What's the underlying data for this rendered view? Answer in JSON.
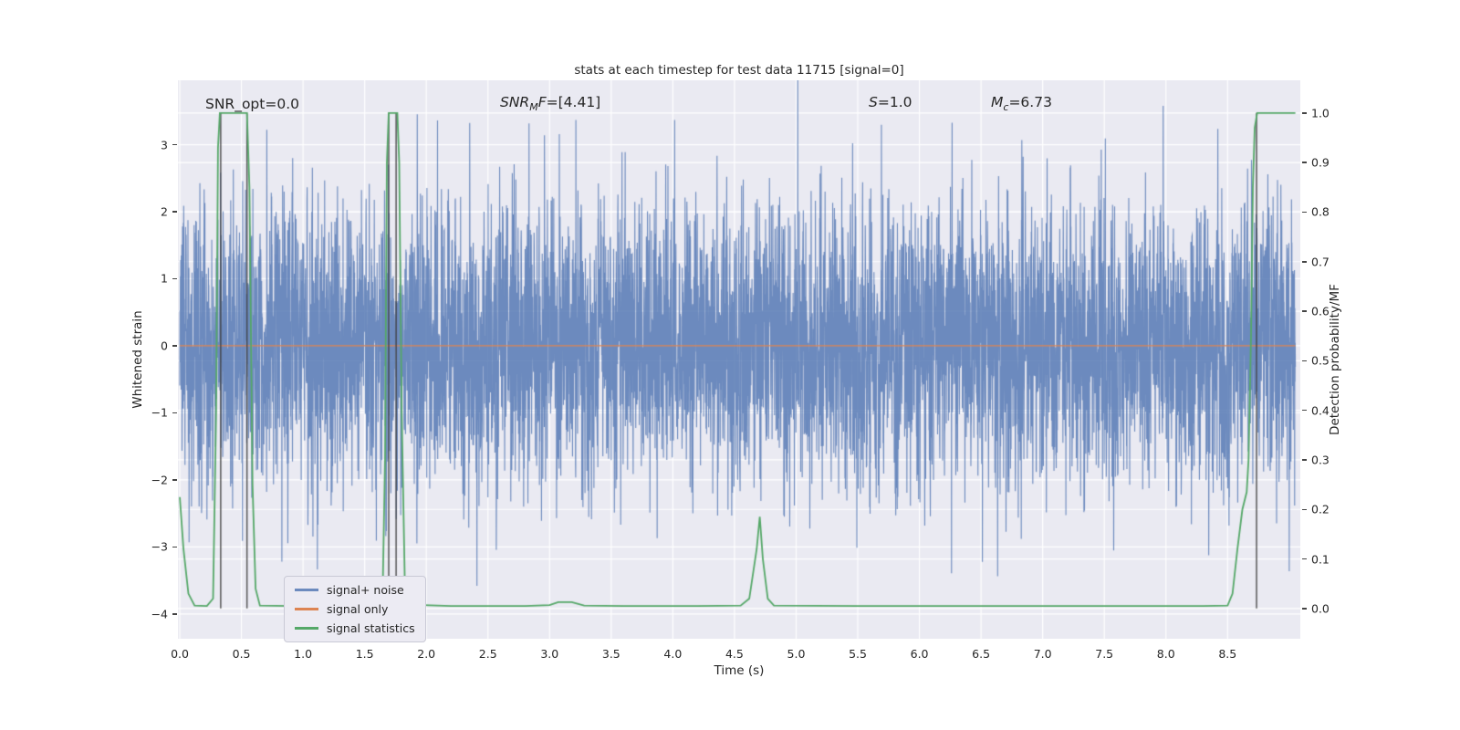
{
  "chart_data": {
    "type": "line",
    "title": "stats at each timestep for test data 11715 [signal=0]",
    "xlabel": "Time (s)",
    "ylabel_left": "Whitened strain",
    "ylabel_right": "Detection probability/MF",
    "xlim": [
      -0.015,
      9.09
    ],
    "ylim_left": [
      -4.37,
      3.96
    ],
    "ylim_right": [
      -0.061,
      1.066
    ],
    "grid": true,
    "x_ticks": {
      "values": [
        0,
        0.5,
        1,
        1.5,
        2,
        2.5,
        3,
        3.5,
        4,
        4.5,
        5,
        5.5,
        6,
        6.5,
        7,
        7.5,
        8,
        8.5
      ],
      "labels": [
        "0.0",
        "0.5",
        "1.0",
        "1.5",
        "2.0",
        "2.5",
        "3.0",
        "3.5",
        "4.0",
        "4.5",
        "5.0",
        "5.5",
        "6.0",
        "6.5",
        "7.0",
        "7.5",
        "8.0",
        "8.5"
      ]
    },
    "y_ticks_left": {
      "values": [
        -4,
        -3,
        -2,
        -1,
        0,
        1,
        2,
        3
      ],
      "labels": [
        "−4",
        "−3",
        "−2",
        "−1",
        "0",
        "1",
        "2",
        "3"
      ]
    },
    "y_ticks_right": {
      "values": [
        0,
        0.1,
        0.2,
        0.3,
        0.4,
        0.5,
        0.6,
        0.7,
        0.8,
        0.9,
        1
      ],
      "labels": [
        "0.0",
        "0.1",
        "0.2",
        "0.3",
        "0.4",
        "0.5",
        "0.6",
        "0.7",
        "0.8",
        "0.9",
        "1.0"
      ]
    },
    "annotations": {
      "snr_opt": {
        "text": "SNR_opt=0.0"
      },
      "snr_mf": {
        "pre": "SNR",
        "sub": "M",
        "mid": "F",
        "post": "=[4.41]"
      },
      "s": {
        "pre": "S",
        "post": "=1.0"
      },
      "mc": {
        "pre": "M",
        "sub": "c",
        "post": "=6.73"
      }
    },
    "legend": {
      "position": "lower left",
      "entries": [
        {
          "label": "signal+ noise",
          "color": "#4c72b0",
          "alpha": 0.8
        },
        {
          "label": "signal only",
          "color": "#dd8452",
          "alpha": 1
        },
        {
          "label": "signal statistics",
          "color": "#55a868",
          "alpha": 1
        }
      ]
    },
    "colors": {
      "figure_background": "#ffffff",
      "axes_background": "#eaeaf2",
      "grid": "#ffffff",
      "text": "#262626",
      "vline": "#3c3c3c"
    },
    "series": {
      "signal_plus_noise": {
        "kind": "gaussian_noise",
        "axis": "left",
        "seed": 20,
        "n": 6000,
        "sigma": 1.05,
        "t_start": 0,
        "t_end": 9.05,
        "color": "#4c72b0",
        "alpha": 0.8
      },
      "signal_only": {
        "kind": "constant",
        "axis": "left",
        "y": 0,
        "t_start": 0,
        "t_end": 9.05,
        "color": "#dd8452"
      },
      "signal_statistics": {
        "kind": "line",
        "axis": "right",
        "color": "#55a868",
        "points": [
          [
            0.0,
            0.225
          ],
          [
            0.03,
            0.12
          ],
          [
            0.07,
            0.03
          ],
          [
            0.12,
            0.006
          ],
          [
            0.22,
            0.005
          ],
          [
            0.27,
            0.02
          ],
          [
            0.295,
            0.4
          ],
          [
            0.31,
            0.93
          ],
          [
            0.325,
            1.0
          ],
          [
            0.545,
            1.0
          ],
          [
            0.565,
            0.85
          ],
          [
            0.59,
            0.25
          ],
          [
            0.615,
            0.04
          ],
          [
            0.65,
            0.006
          ],
          [
            0.9,
            0.005
          ],
          [
            1.3,
            0.005
          ],
          [
            1.6,
            0.005
          ],
          [
            1.645,
            0.02
          ],
          [
            1.665,
            0.3
          ],
          [
            1.68,
            0.9
          ],
          [
            1.695,
            1.0
          ],
          [
            1.765,
            1.0
          ],
          [
            1.78,
            0.9
          ],
          [
            1.8,
            0.4
          ],
          [
            1.825,
            0.06
          ],
          [
            1.86,
            0.008
          ],
          [
            2.2,
            0.005
          ],
          [
            2.8,
            0.005
          ],
          [
            3.0,
            0.007
          ],
          [
            3.07,
            0.013
          ],
          [
            3.18,
            0.013
          ],
          [
            3.28,
            0.006
          ],
          [
            3.6,
            0.005
          ],
          [
            4.2,
            0.005
          ],
          [
            4.55,
            0.006
          ],
          [
            4.62,
            0.02
          ],
          [
            4.68,
            0.12
          ],
          [
            4.705,
            0.185
          ],
          [
            4.73,
            0.1
          ],
          [
            4.77,
            0.02
          ],
          [
            4.82,
            0.006
          ],
          [
            5.5,
            0.005
          ],
          [
            6.5,
            0.005
          ],
          [
            7.5,
            0.005
          ],
          [
            8.3,
            0.005
          ],
          [
            8.5,
            0.006
          ],
          [
            8.54,
            0.03
          ],
          [
            8.58,
            0.12
          ],
          [
            8.62,
            0.2
          ],
          [
            8.655,
            0.235
          ],
          [
            8.67,
            0.3
          ],
          [
            8.69,
            0.55
          ],
          [
            8.705,
            0.85
          ],
          [
            8.72,
            0.97
          ],
          [
            8.74,
            1.0
          ],
          [
            9.05,
            1.0
          ]
        ]
      }
    },
    "vlines": {
      "times": [
        0.332,
        0.545,
        1.695,
        1.755,
        8.735
      ],
      "span": [
        0,
        1
      ],
      "axis": "right",
      "color": "#3c3c3c"
    }
  }
}
